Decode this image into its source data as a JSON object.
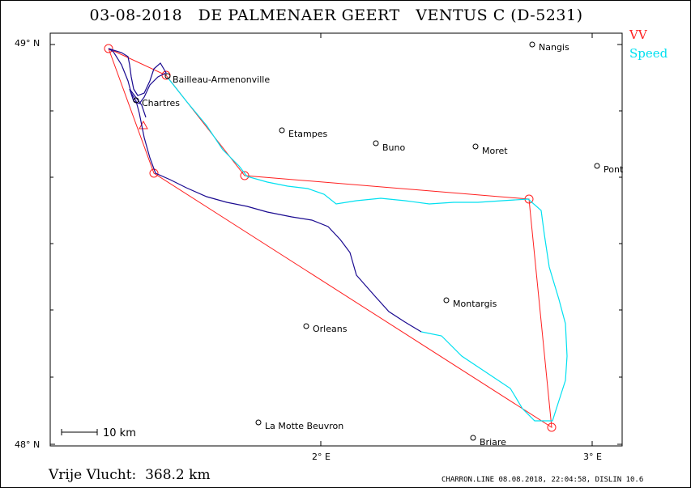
{
  "header": {
    "date": "03-08-2018",
    "pilot": "DE PALMENAER GEERT",
    "glider": "VENTUS C (D-5231)"
  },
  "legend": {
    "vv": "VV",
    "speed": "Speed",
    "vv_color": "#ff2020",
    "speed_color": "#00e0f0"
  },
  "axes": {
    "y_labels": [
      "49° N",
      "48° N"
    ],
    "x_labels": [
      "2° E",
      "3° E"
    ]
  },
  "towns": [
    {
      "name": "Nangis"
    },
    {
      "name": "Bailleau-Armenonville"
    },
    {
      "name": "Chartres"
    },
    {
      "name": "Etampes"
    },
    {
      "name": "Buno"
    },
    {
      "name": "Moret"
    },
    {
      "name": "Pont"
    },
    {
      "name": "Montargis"
    },
    {
      "name": "Orleans"
    },
    {
      "name": "La Motte Beuvron"
    },
    {
      "name": "Briare"
    }
  ],
  "scale": {
    "label": "10 km"
  },
  "footer": {
    "distance": "Vrije Vlucht:  368.2 km",
    "credit": "CHARRON.LINE 08.08.2018, 22:04:58, DISLIN 10.6"
  }
}
